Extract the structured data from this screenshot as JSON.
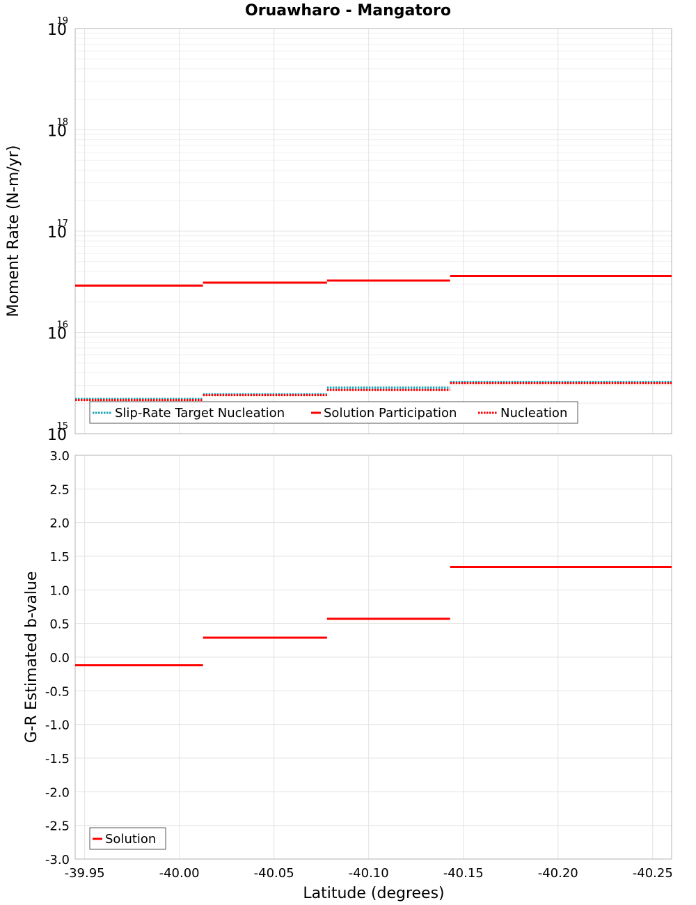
{
  "chart_data": [
    {
      "type": "line",
      "title": "Oruawharo - Mangatoro",
      "xlabel": "Latitude (degrees)",
      "ylabel": "Moment Rate (N-m/yr)",
      "yscale": "log",
      "ylim": [
        1000000000000000.0,
        1e+19
      ],
      "xlim": [
        -39.945,
        -40.26
      ],
      "ytick_base": "10",
      "ytick_exponents": [
        "15",
        "16",
        "17",
        "18",
        "19"
      ],
      "grid": true,
      "legend_position": "bottom-left",
      "series": [
        {
          "name": "Slip-Rate Target Nucleation",
          "style": "dotted",
          "color": "#1aa3b8",
          "segments": [
            {
              "x0": -39.945,
              "x1": -40.0125,
              "y": 2200000000000000.0
            },
            {
              "x0": -40.0125,
              "x1": -40.078,
              "y": 2450000000000000.0
            },
            {
              "x0": -40.078,
              "x1": -40.143,
              "y": 2850000000000000.0
            },
            {
              "x0": -40.143,
              "x1": -40.26,
              "y": 3250000000000000.0
            }
          ]
        },
        {
          "name": "Solution Participation",
          "style": "solid",
          "color": "#ff0000",
          "segments": [
            {
              "x0": -39.945,
              "x1": -40.0125,
              "y": 2.9e+16
            },
            {
              "x0": -40.0125,
              "x1": -40.078,
              "y": 3.1e+16
            },
            {
              "x0": -40.078,
              "x1": -40.143,
              "y": 3.25e+16
            },
            {
              "x0": -40.143,
              "x1": -40.26,
              "y": 3.6e+16
            }
          ]
        },
        {
          "name": "Nucleation",
          "style": "dotted",
          "color": "#ff0000",
          "segments": [
            {
              "x0": -39.945,
              "x1": -40.0125,
              "y": 2150000000000000.0
            },
            {
              "x0": -40.0125,
              "x1": -40.078,
              "y": 2400000000000000.0
            },
            {
              "x0": -40.078,
              "x1": -40.143,
              "y": 2700000000000000.0
            },
            {
              "x0": -40.143,
              "x1": -40.26,
              "y": 3150000000000000.0
            }
          ]
        }
      ]
    },
    {
      "type": "line",
      "title": "",
      "xlabel": "Latitude (degrees)",
      "ylabel": "G-R Estimated b-value",
      "ylim": [
        -3.0,
        3.0
      ],
      "xlim": [
        -39.945,
        -40.26
      ],
      "yticks": [
        "3.0",
        "2.5",
        "2.0",
        "1.5",
        "1.0",
        "0.5",
        "0.0",
        "-0.5",
        "-1.0",
        "-1.5",
        "-2.0",
        "-2.5",
        "-3.0"
      ],
      "xticks": [
        "-39.95",
        "-40.00",
        "-40.05",
        "-40.10",
        "-40.15",
        "-40.20",
        "-40.25"
      ],
      "grid": true,
      "legend_position": "bottom-left",
      "series": [
        {
          "name": "Solution",
          "style": "solid",
          "color": "#ff0000",
          "segments": [
            {
              "x0": -39.945,
              "x1": -40.0125,
              "y": -0.12
            },
            {
              "x0": -40.0125,
              "x1": -40.078,
              "y": 0.29
            },
            {
              "x0": -40.078,
              "x1": -40.143,
              "y": 0.57
            },
            {
              "x0": -40.143,
              "x1": -40.26,
              "y": 1.34
            }
          ]
        }
      ]
    }
  ]
}
